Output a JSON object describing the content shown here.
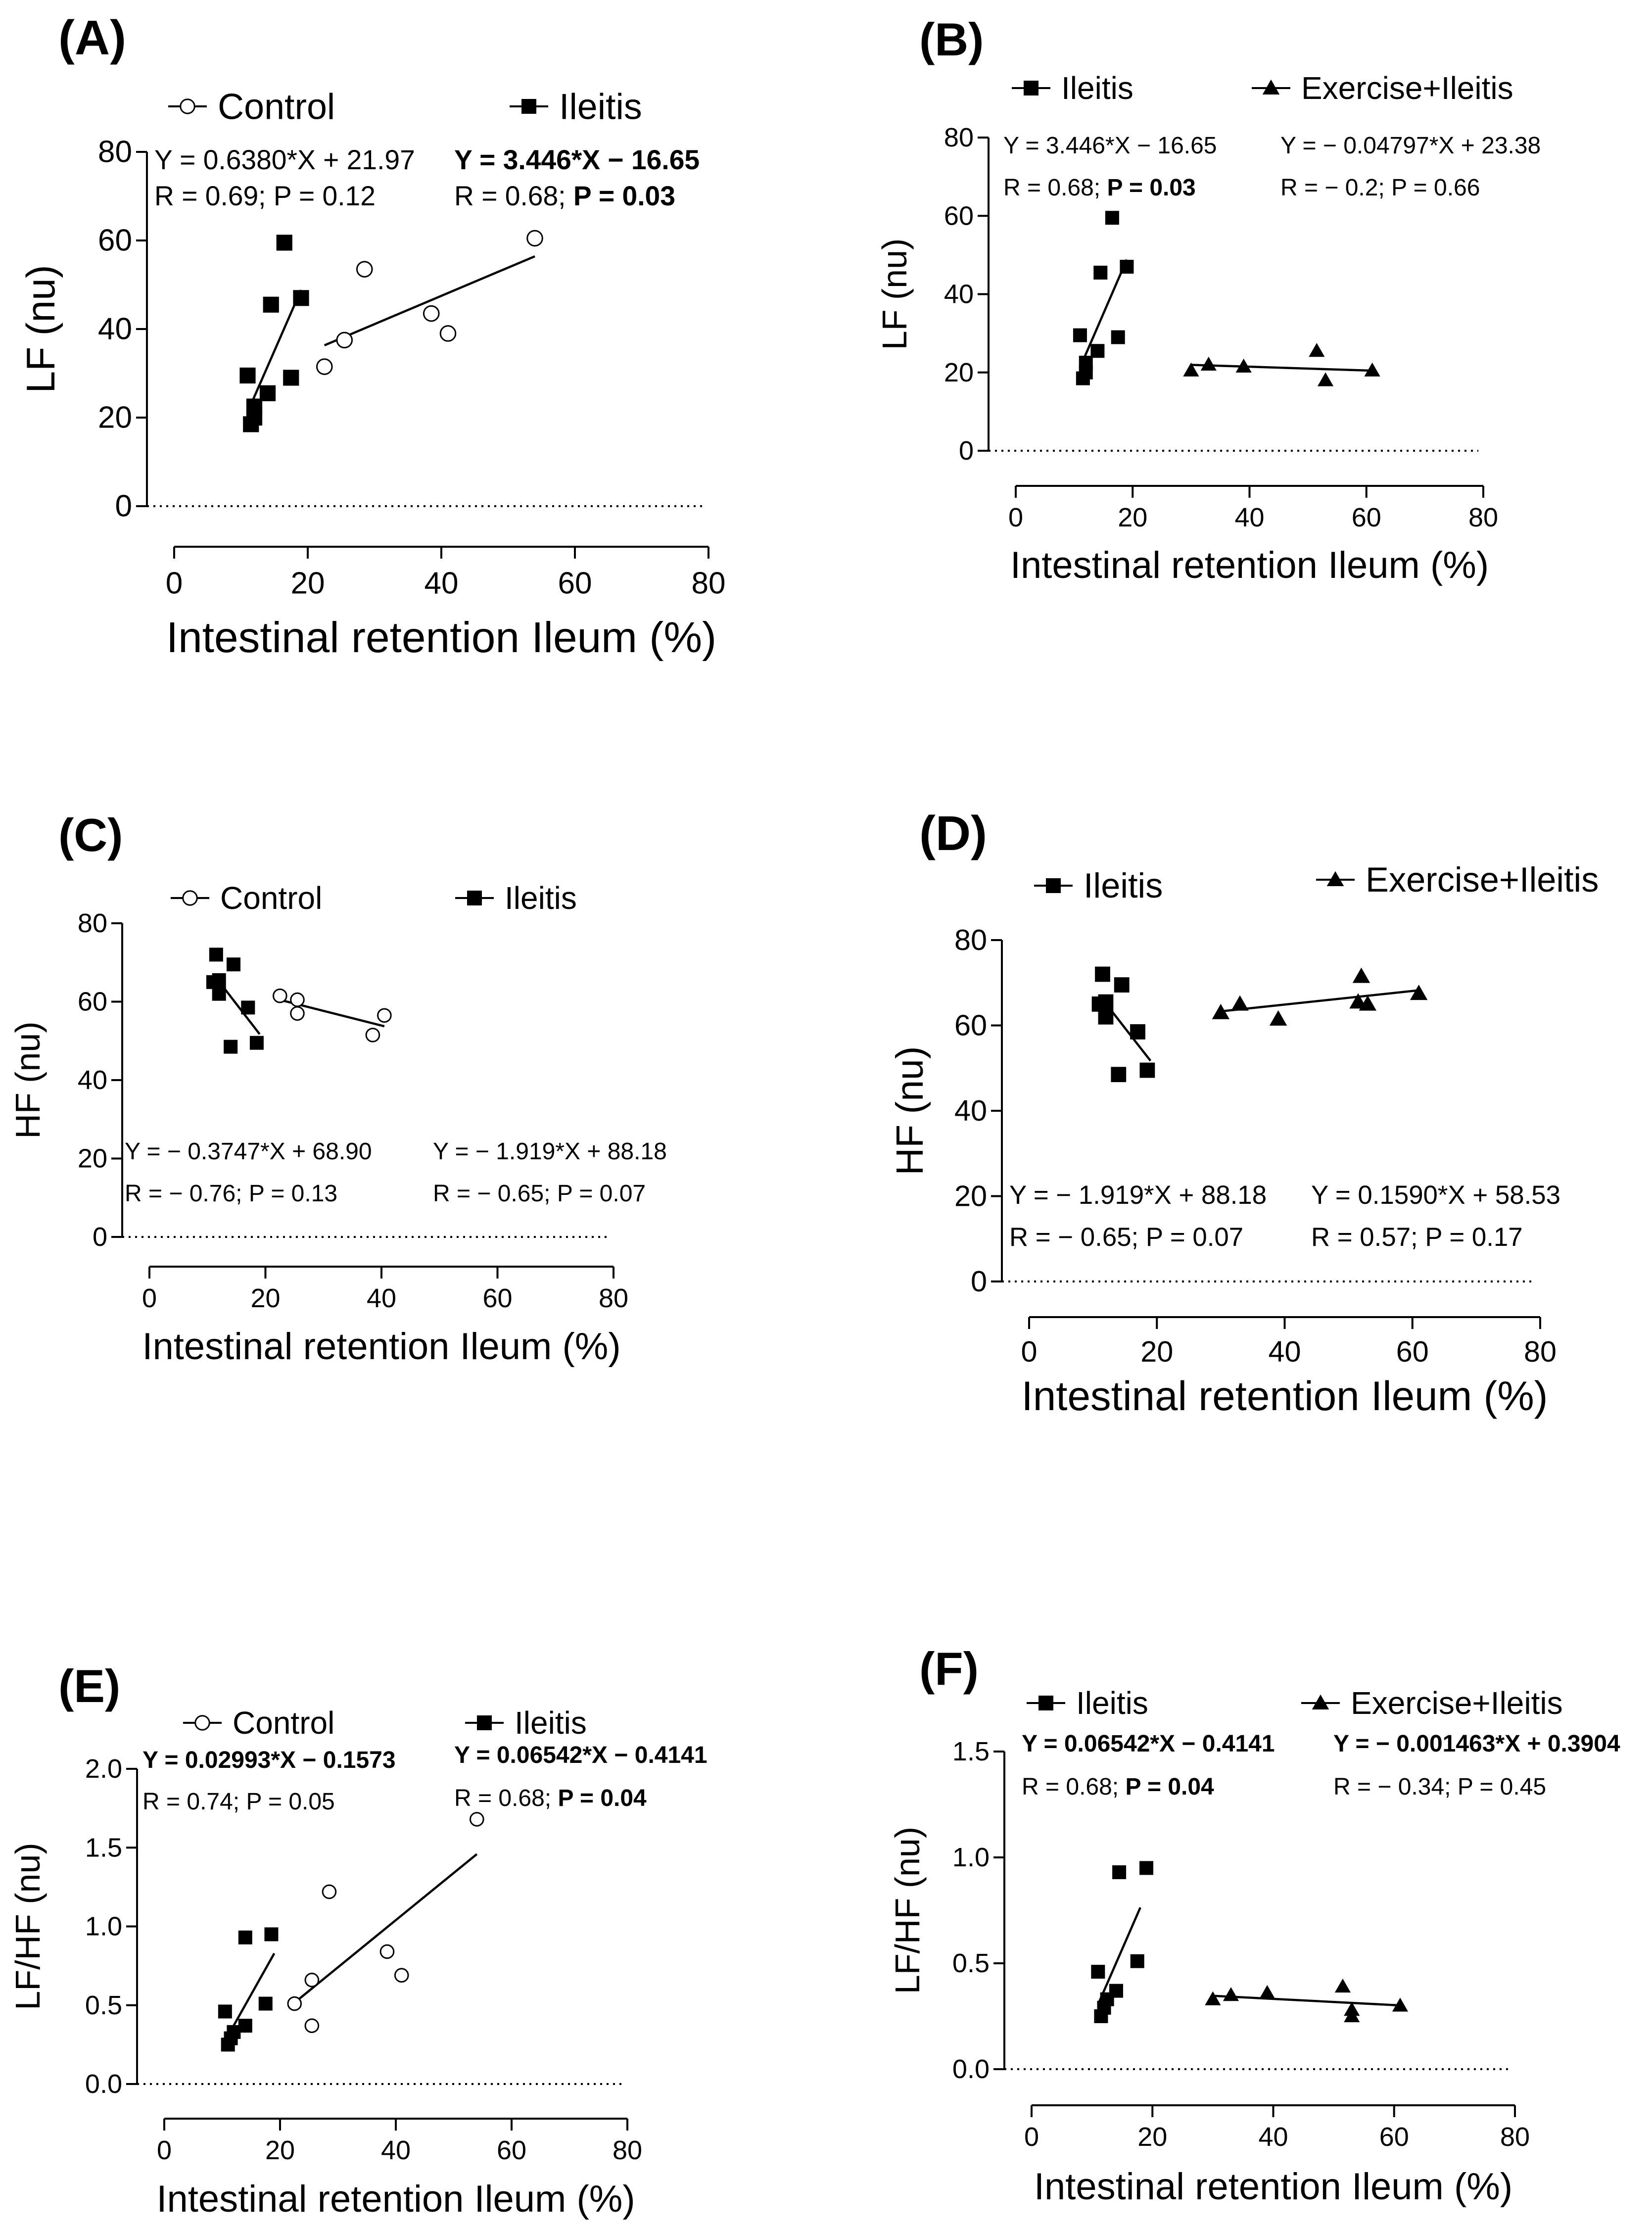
{
  "figure": {
    "panels": [
      {
        "id": "A",
        "panel_label": "(A)",
        "legend": [
          "Control",
          "Ileitis"
        ],
        "equations": [
          {
            "line1": "Y = 0.6380*X + 21.97",
            "line2": "R = 0.69; P = 0.12",
            "bold_p": false,
            "bold_eq": false
          },
          {
            "line1": "Y = 3.446*X − 16.65",
            "line2": "R = 0.68; P = 0.03",
            "bold_p": true,
            "bold_eq": true
          }
        ]
      },
      {
        "id": "B",
        "panel_label": "(B)",
        "legend": [
          "Ileitis",
          "Exercise+Ileitis"
        ],
        "equations": [
          {
            "line1": "Y = 3.446*X − 16.65",
            "line2": "R = 0.68; P = 0.03",
            "bold_p": true,
            "bold_eq": false
          },
          {
            "line1": "Y = − 0.04797*X + 23.38",
            "line2": "R = − 0.2; P = 0.66",
            "bold_p": false,
            "bold_eq": false
          }
        ]
      },
      {
        "id": "C",
        "panel_label": "(C)",
        "legend": [
          "Control",
          "Ileitis"
        ],
        "equations": [
          {
            "line1": "Y = − 0.3747*X + 68.90",
            "line2": "R = − 0.76; P = 0.13",
            "bold_p": false,
            "bold_eq": false
          },
          {
            "line1": "Y = − 1.919*X + 88.18",
            "line2": "R = − 0.65; P = 0.07",
            "bold_p": false,
            "bold_eq": false
          }
        ]
      },
      {
        "id": "D",
        "panel_label": "(D)",
        "legend": [
          "Ileitis",
          "Exercise+Ileitis"
        ],
        "equations": [
          {
            "line1": "Y = − 1.919*X + 88.18",
            "line2": "R = − 0.65; P = 0.07",
            "bold_p": false,
            "bold_eq": false
          },
          {
            "line1": "Y = 0.1590*X + 58.53",
            "line2": "R = 0.57; P = 0.17",
            "bold_p": false,
            "bold_eq": false
          }
        ]
      },
      {
        "id": "E",
        "panel_label": "(E)",
        "legend": [
          "Control",
          "Ileitis"
        ],
        "equations": [
          {
            "line1": "Y = 0.02993*X − 0.1573",
            "line2": "R = 0.74; P = 0.05",
            "bold_p": false,
            "bold_eq": true
          },
          {
            "line1": "Y = 0.06542*X − 0.4141",
            "line2": "R = 0.68; P = 0.04",
            "bold_p": true,
            "bold_eq": true
          }
        ]
      },
      {
        "id": "F",
        "panel_label": "(F)",
        "legend": [
          "Ileitis",
          "Exercise+Ileitis"
        ],
        "equations": [
          {
            "line1": "Y = 0.06542*X − 0.4141",
            "line2": "R = 0.68; P = 0.04",
            "bold_p": true,
            "bold_eq": true
          },
          {
            "line1": "Y = − 0.001463*X + 0.3904",
            "line2": "R = − 0.34; P = 0.45",
            "bold_p": false,
            "bold_eq": true
          }
        ]
      }
    ]
  },
  "chart_data": [
    {
      "type": "scatter",
      "panel": "(A)",
      "xlabel": "Intestinal retention Ileum (%)",
      "ylabel": "LF (nu)",
      "xlim": [
        0,
        80
      ],
      "ylim": [
        0,
        80
      ],
      "xticks": [
        0,
        20,
        40,
        60,
        80
      ],
      "yticks": [
        0,
        20,
        40,
        60,
        80
      ],
      "legend_position": "top",
      "reference_line_y": 0,
      "series": [
        {
          "name": "Control",
          "marker": "open-circle",
          "points": [
            [
              22.5,
              31.5
            ],
            [
              25.5,
              37.5
            ],
            [
              28.5,
              53.5
            ],
            [
              38.5,
              43.5
            ],
            [
              41,
              39
            ],
            [
              54,
              60.5
            ]
          ],
          "fit": {
            "slope": 0.638,
            "intercept": 21.97,
            "x_range": [
              22.5,
              54
            ]
          }
        },
        {
          "name": "Ileitis",
          "marker": "filled-square",
          "points": [
            [
              11,
              29.5
            ],
            [
              11.5,
              18.5
            ],
            [
              12,
              20
            ],
            [
              12,
              22.5
            ],
            [
              14,
              25.5
            ],
            [
              14.5,
              45.5
            ],
            [
              16.5,
              59.5
            ],
            [
              17.5,
              29
            ],
            [
              19,
              47
            ]
          ],
          "fit": {
            "slope": 3.446,
            "intercept": -16.65,
            "x_range": [
              11,
              19
            ]
          }
        }
      ]
    },
    {
      "type": "scatter",
      "panel": "(B)",
      "xlabel": "Intestinal retention Ileum (%)",
      "ylabel": "LF (nu)",
      "xlim": [
        0,
        80
      ],
      "ylim": [
        0,
        80
      ],
      "xticks": [
        0,
        20,
        40,
        60,
        80
      ],
      "yticks": [
        0,
        20,
        40,
        60,
        80
      ],
      "legend_position": "top",
      "reference_line_y": 0,
      "series": [
        {
          "name": "Ileitis",
          "marker": "filled-square",
          "points": [
            [
              11,
              29.5
            ],
            [
              11.5,
              18.5
            ],
            [
              12,
              20
            ],
            [
              12,
              22.5
            ],
            [
              14,
              25.5
            ],
            [
              14.5,
              45.5
            ],
            [
              16.5,
              59.5
            ],
            [
              17.5,
              29
            ],
            [
              19,
              47
            ]
          ],
          "fit": {
            "slope": 3.446,
            "intercept": -16.65,
            "x_range": [
              11,
              19
            ]
          }
        },
        {
          "name": "Exercise+Ileitis",
          "marker": "filled-triangle",
          "points": [
            [
              30,
              20.5
            ],
            [
              33,
              22
            ],
            [
              39,
              21.5
            ],
            [
              51.5,
              25.5
            ],
            [
              53,
              18
            ],
            [
              61,
              20.5
            ]
          ],
          "fit": {
            "slope": -0.04797,
            "intercept": 23.38,
            "x_range": [
              30,
              61
            ]
          }
        }
      ]
    },
    {
      "type": "scatter",
      "panel": "(C)",
      "xlabel": "Intestinal retention Ileum (%)",
      "ylabel": "HF (nu)",
      "xlim": [
        0,
        80
      ],
      "ylim": [
        0,
        80
      ],
      "xticks": [
        0,
        20,
        40,
        60,
        80
      ],
      "yticks": [
        0,
        20,
        40,
        60,
        80
      ],
      "legend_position": "top",
      "reference_line_y": 0,
      "series": [
        {
          "name": "Control",
          "marker": "open-circle",
          "points": [
            [
              22.5,
              61.5
            ],
            [
              25.5,
              60.5
            ],
            [
              25.5,
              57
            ],
            [
              38.5,
              51.5
            ],
            [
              40.5,
              56.5
            ]
          ],
          "fit": {
            "slope": -0.3747,
            "intercept": 68.9,
            "x_range": [
              22.5,
              40.5
            ]
          }
        },
        {
          "name": "Ileitis",
          "marker": "filled-square",
          "points": [
            [
              11,
              65
            ],
            [
              11.5,
              72
            ],
            [
              12,
              65.5
            ],
            [
              12,
              62
            ],
            [
              14,
              48.5
            ],
            [
              14.5,
              69.5
            ],
            [
              17,
              58.5
            ],
            [
              18.5,
              49.5
            ]
          ],
          "fit": {
            "slope": -1.919,
            "intercept": 88.18,
            "x_range": [
              11,
              19
            ]
          }
        }
      ]
    },
    {
      "type": "scatter",
      "panel": "(D)",
      "xlabel": "Intestinal retention Ileum (%)",
      "ylabel": "HF (nu)",
      "xlim": [
        0,
        80
      ],
      "ylim": [
        0,
        80
      ],
      "xticks": [
        0,
        20,
        40,
        60,
        80
      ],
      "yticks": [
        0,
        20,
        40,
        60,
        80
      ],
      "legend_position": "top",
      "reference_line_y": 0,
      "series": [
        {
          "name": "Ileitis",
          "marker": "filled-square",
          "points": [
            [
              11,
              65
            ],
            [
              11.5,
              72
            ],
            [
              12,
              65.5
            ],
            [
              12,
              62
            ],
            [
              14,
              48.5
            ],
            [
              14.5,
              69.5
            ],
            [
              17,
              58.5
            ],
            [
              18.5,
              49.5
            ]
          ],
          "fit": {
            "slope": -1.919,
            "intercept": 88.18,
            "x_range": [
              11,
              19
            ]
          }
        },
        {
          "name": "Exercise+Ileitis",
          "marker": "filled-triangle",
          "points": [
            [
              30,
              63
            ],
            [
              33,
              65
            ],
            [
              39,
              61.5
            ],
            [
              51.5,
              65.5
            ],
            [
              52,
              71.5
            ],
            [
              53,
              65
            ],
            [
              61,
              67.5
            ]
          ],
          "fit": {
            "slope": 0.159,
            "intercept": 58.53,
            "x_range": [
              30,
              61
            ]
          }
        }
      ]
    },
    {
      "type": "scatter",
      "panel": "(E)",
      "xlabel": "Intestinal retention Ileum (%)",
      "ylabel": "LF/HF (nu)",
      "xlim": [
        0,
        80
      ],
      "ylim": [
        0,
        2.0
      ],
      "xticks": [
        0,
        20,
        40,
        60,
        80
      ],
      "yticks": [
        0,
        0.5,
        1.0,
        1.5,
        2.0
      ],
      "legend_position": "top",
      "reference_line_y": 0,
      "series": [
        {
          "name": "Control",
          "marker": "open-circle",
          "points": [
            [
              22.5,
              0.51
            ],
            [
              25.5,
              0.66
            ],
            [
              25.5,
              0.37
            ],
            [
              28.5,
              1.22
            ],
            [
              38.5,
              0.84
            ],
            [
              41,
              0.69
            ],
            [
              54,
              1.68
            ]
          ],
          "fit": {
            "slope": 0.02993,
            "intercept": -0.1573,
            "x_range": [
              22,
              54
            ]
          }
        },
        {
          "name": "Ileitis",
          "marker": "filled-square",
          "points": [
            [
              10.5,
              0.46
            ],
            [
              11,
              0.25
            ],
            [
              11.5,
              0.29
            ],
            [
              12,
              0.33
            ],
            [
              14,
              0.37
            ],
            [
              14,
              0.93
            ],
            [
              17.5,
              0.51
            ],
            [
              18.5,
              0.95
            ]
          ],
          "fit": {
            "slope": 0.06542,
            "intercept": -0.4141,
            "x_range": [
              11,
              19
            ]
          }
        }
      ]
    },
    {
      "type": "scatter",
      "panel": "(F)",
      "xlabel": "Intestinal retention Ileum (%)",
      "ylabel": "LF/HF (nu)",
      "xlim": [
        0,
        80
      ],
      "ylim": [
        0,
        1.5
      ],
      "xticks": [
        0,
        20,
        40,
        60,
        80
      ],
      "yticks": [
        0.0,
        0.5,
        1.0,
        1.5
      ],
      "legend_position": "top",
      "reference_line_y": 0,
      "series": [
        {
          "name": "Ileitis",
          "marker": "filled-square",
          "points": [
            [
              11,
              0.46
            ],
            [
              11.5,
              0.25
            ],
            [
              12,
              0.29
            ],
            [
              12.5,
              0.33
            ],
            [
              14,
              0.37
            ],
            [
              14.5,
              0.93
            ],
            [
              17.5,
              0.51
            ],
            [
              19,
              0.95
            ]
          ],
          "fit": {
            "slope": 0.06542,
            "intercept": -0.4141,
            "x_range": [
              11,
              18
            ]
          }
        },
        {
          "name": "Exercise+Ileitis",
          "marker": "filled-triangle",
          "points": [
            [
              30,
              0.33
            ],
            [
              33,
              0.35
            ],
            [
              39,
              0.36
            ],
            [
              51.5,
              0.39
            ],
            [
              53,
              0.28
            ],
            [
              53,
              0.25
            ],
            [
              61,
              0.3
            ]
          ],
          "fit": {
            "slope": -0.001463,
            "intercept": 0.3904,
            "x_range": [
              30,
              61
            ]
          }
        }
      ]
    }
  ]
}
